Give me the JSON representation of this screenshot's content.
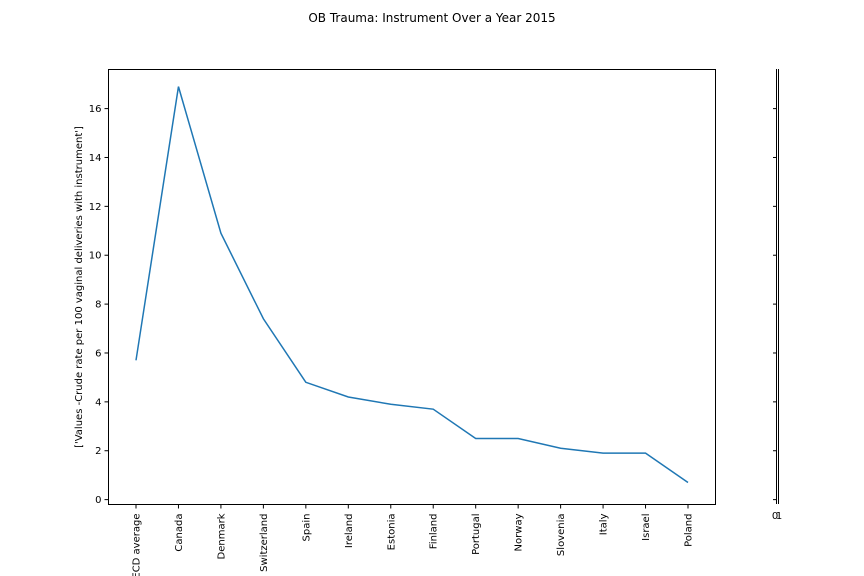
{
  "chart_data": {
    "type": "line",
    "title": "OB Trauma: Instrument Over a Year 2015",
    "xlabel": "",
    "ylabel": "['Values -Crude rate per 100 vaginal deliveries with instrument']",
    "categories": [
      "OECD average",
      "Canada",
      "Denmark",
      "Switzerland",
      "Spain",
      "Ireland",
      "Estonia",
      "Finland",
      "Portugal",
      "Norway",
      "Slovenia",
      "Italy",
      "Israel",
      "Poland"
    ],
    "series": [
      {
        "values": [
          5.7,
          16.9,
          10.9,
          7.4,
          4.8,
          4.2,
          3.9,
          3.7,
          2.5,
          2.5,
          2.1,
          1.9,
          1.9,
          0.7
        ]
      }
    ],
    "ylim": [
      -0.2,
      17.6
    ],
    "yticks": [
      0,
      2,
      4,
      6,
      8,
      10,
      12,
      14,
      16
    ],
    "grid": false,
    "line_color": "#1f77b4",
    "side_axis_tick_labels": [
      "0",
      "1"
    ]
  }
}
